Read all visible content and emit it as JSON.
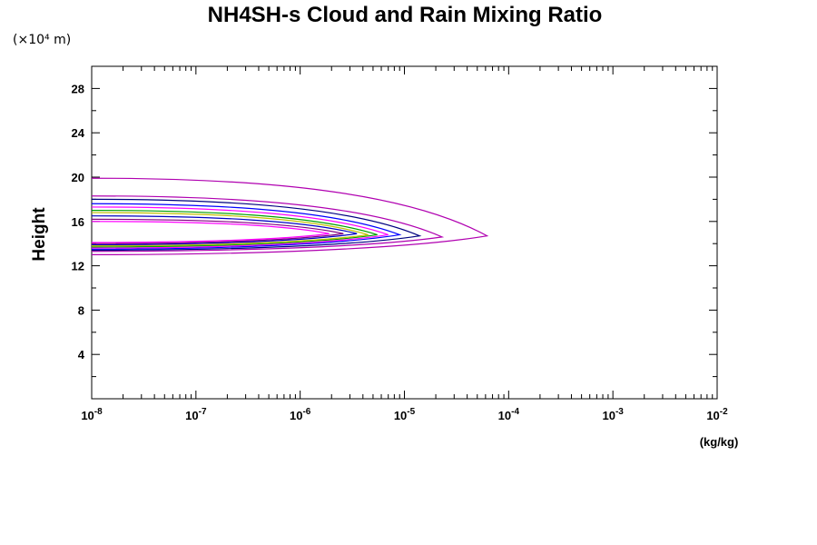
{
  "chart_data": {
    "type": "line",
    "title": "NH4SH-s Cloud and Rain Mixing Ratio",
    "y_unit_label": "(×10⁴ m)",
    "ylabel": "Height",
    "xlabel": "(kg/kg)",
    "x_scale": "log",
    "xlim": [
      1e-08,
      0.01
    ],
    "ylim": [
      0,
      30
    ],
    "x_ticks": [
      {
        "value": 1e-08,
        "base": "10",
        "exp": "-8"
      },
      {
        "value": 1e-07,
        "base": "10",
        "exp": "-7"
      },
      {
        "value": 1e-06,
        "base": "10",
        "exp": "-6"
      },
      {
        "value": 1e-05,
        "base": "10",
        "exp": "-5"
      },
      {
        "value": 0.0001,
        "base": "10",
        "exp": "-4"
      },
      {
        "value": 0.001,
        "base": "10",
        "exp": "-3"
      },
      {
        "value": 0.01,
        "base": "10",
        "exp": "-2"
      }
    ],
    "y_ticks": [
      4,
      8,
      12,
      16,
      20,
      24,
      28
    ],
    "grid": false,
    "series": [
      {
        "color": "#b000b0",
        "y_top": 19.9,
        "y_bottom": 13.0,
        "x_tip": 6.2e-05,
        "y_tip": 14.7
      },
      {
        "color": "#b000b0",
        "y_top": 18.3,
        "y_bottom": 13.3,
        "x_tip": 2.3e-05,
        "y_tip": 14.6
      },
      {
        "color": "#000080",
        "y_top": 18.0,
        "y_bottom": 13.4,
        "x_tip": 1.4e-05,
        "y_tip": 14.7
      },
      {
        "color": "#0000ff",
        "y_top": 17.6,
        "y_bottom": 13.5,
        "x_tip": 9e-06,
        "y_tip": 14.8
      },
      {
        "color": "#ff00ff",
        "y_top": 17.3,
        "y_bottom": 13.6,
        "x_tip": 7e-06,
        "y_tip": 14.8
      },
      {
        "color": "#00a000",
        "y_top": 17.0,
        "y_bottom": 13.7,
        "x_tip": 5.5e-06,
        "y_tip": 14.8
      },
      {
        "color": "#c0c000",
        "y_top": 16.8,
        "y_bottom": 13.8,
        "x_tip": 4.5e-06,
        "y_tip": 14.8
      },
      {
        "color": "#0000c0",
        "y_top": 16.5,
        "y_bottom": 13.9,
        "x_tip": 3.5e-06,
        "y_tip": 14.9
      },
      {
        "color": "#800080",
        "y_top": 16.2,
        "y_bottom": 14.0,
        "x_tip": 2.6e-06,
        "y_tip": 14.9
      },
      {
        "color": "#ff00ff",
        "y_top": 16.0,
        "y_bottom": 14.1,
        "x_tip": 1.9e-06,
        "y_tip": 14.9
      }
    ]
  }
}
